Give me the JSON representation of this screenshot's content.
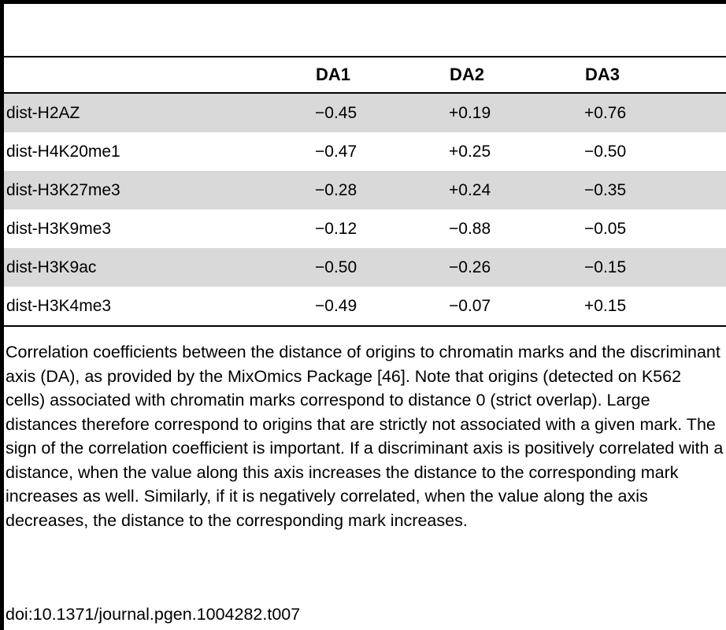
{
  "table": {
    "columns": [
      "",
      "DA1",
      "DA2",
      "DA3"
    ],
    "rows": [
      {
        "name": "dist-H2AZ",
        "da1": "−0.45",
        "da2": "+0.19",
        "da3": "+0.76"
      },
      {
        "name": "dist-H4K20me1",
        "da1": "−0.47",
        "da2": "+0.25",
        "da3": "−0.50"
      },
      {
        "name": "dist-H3K27me3",
        "da1": "−0.28",
        "da2": "+0.24",
        "da3": "−0.35"
      },
      {
        "name": "dist-H3K9me3",
        "da1": "−0.12",
        "da2": "−0.88",
        "da3": "−0.05"
      },
      {
        "name": "dist-H3K9ac",
        "da1": "−0.50",
        "da2": "−0.26",
        "da3": "−0.15"
      },
      {
        "name": "dist-H3K4me3",
        "da1": "−0.49",
        "da2": "−0.07",
        "da3": "+0.15"
      }
    ]
  },
  "footnote": "Correlation coefficients between the distance of origins to chromatin marks and the discriminant axis (DA), as provided by the MixOmics Package [46]. Note that origins (detected on K562 cells) associated with chromatin marks correspond to distance 0 (strict overlap). Large distances therefore correspond to origins that are strictly not associated with a given mark. The sign of the correlation coefficient is important. If a discriminant axis is positively correlated with a distance, when the value along this axis increases the distance to the corresponding mark increases as well. Similarly, if it is negatively correlated, when the value along the axis decreases, the distance to the corresponding mark increases.",
  "doi": "doi:10.1371/journal.pgen.1004282.t007",
  "colors": {
    "row_shade": "#d9d9d9",
    "rule": "#000000"
  }
}
